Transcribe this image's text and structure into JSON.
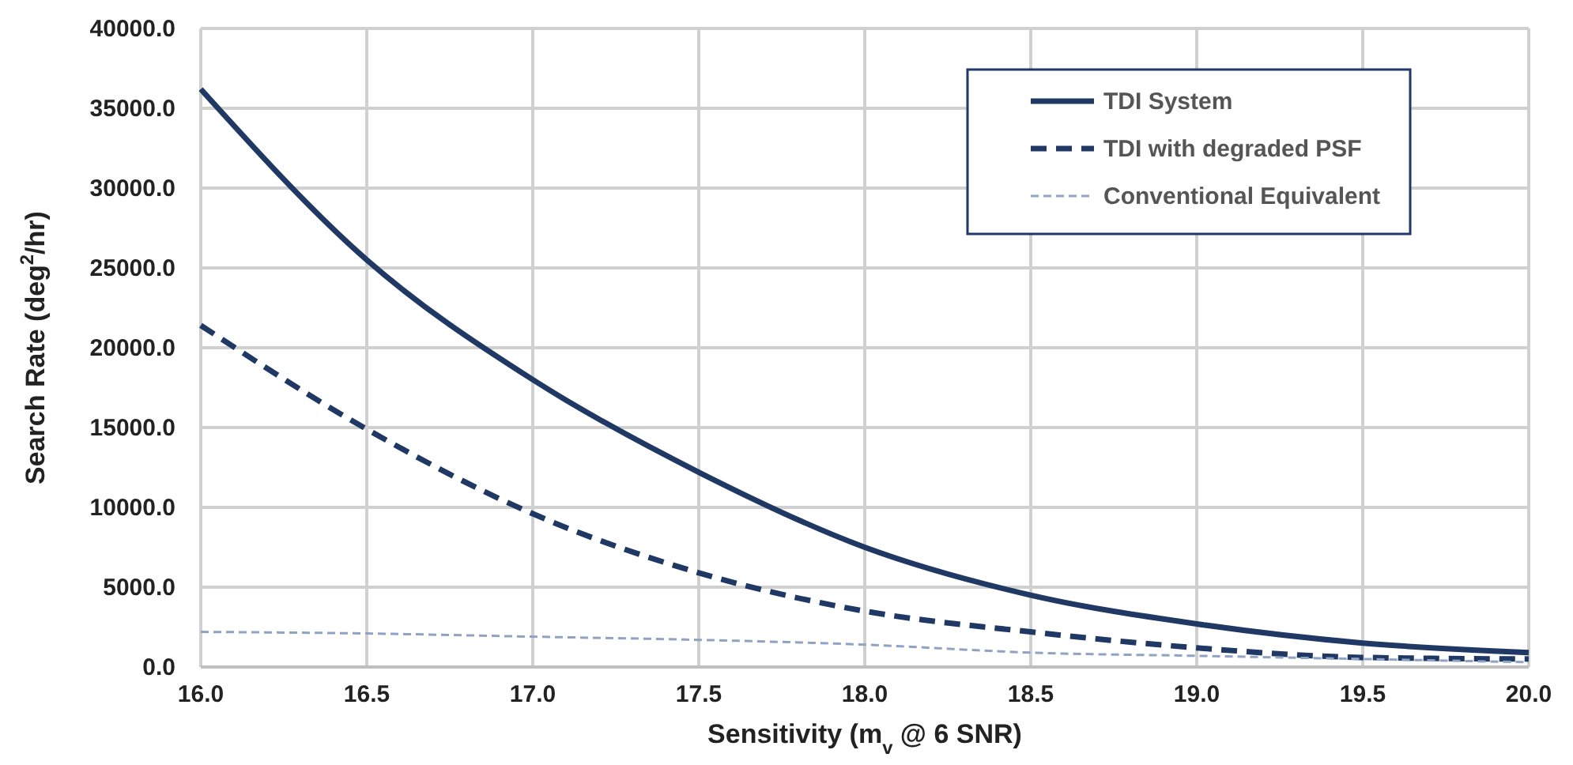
{
  "chart_data": {
    "type": "line",
    "xlabel": "Sensitivity (m$_{v}$ @ 6 SNR)",
    "ylabel": "Search Rate (deg$^{2}$/hr)",
    "x": [
      16.0,
      16.5,
      17.0,
      17.5,
      18.0,
      18.5,
      19.0,
      19.5,
      20.0
    ],
    "series": [
      {
        "name": "TDI System",
        "color": "#203864",
        "line_style": "solid",
        "values": [
          36200,
          25500,
          18000,
          12200,
          7500,
          4500,
          2700,
          1500,
          900
        ]
      },
      {
        "name": "TDI with degraded PSF",
        "color": "#203864",
        "line_style": "dashed",
        "values": [
          21400,
          14900,
          9600,
          5900,
          3500,
          2200,
          1200,
          600,
          500
        ]
      },
      {
        "name": "Conventional Equivalent",
        "color": "#8fa3c4",
        "line_style": "dotted",
        "values": [
          2200,
          2100,
          1900,
          1700,
          1400,
          900,
          700,
          500,
          300
        ]
      }
    ],
    "xlim": [
      16,
      20
    ],
    "xticks": [
      {
        "value": 16,
        "label": "16.0"
      },
      {
        "value": 16.5,
        "label": "16.5"
      },
      {
        "value": 17,
        "label": "17.0"
      },
      {
        "value": 17.5,
        "label": "17.5"
      },
      {
        "value": 18,
        "label": "18.0"
      },
      {
        "value": 18.5,
        "label": "18.5"
      },
      {
        "value": 19,
        "label": "19.0"
      },
      {
        "value": 19.5,
        "label": "19.5"
      },
      {
        "value": 20,
        "label": "20.0"
      }
    ],
    "ylim": [
      0,
      40000
    ],
    "yticks": [
      {
        "value": 0,
        "label": "0.0"
      },
      {
        "value": 5000,
        "label": "5000.0"
      },
      {
        "value": 10000,
        "label": "10000.0"
      },
      {
        "value": 15000,
        "label": "15000.0"
      },
      {
        "value": 20000,
        "label": "20000.0"
      },
      {
        "value": 25000,
        "label": "25000.0"
      },
      {
        "value": 30000,
        "label": "30000.0"
      },
      {
        "value": 35000,
        "label": "35000.0"
      },
      {
        "value": 40000,
        "label": "40000.0"
      }
    ],
    "grid": true,
    "legend": "top right"
  }
}
